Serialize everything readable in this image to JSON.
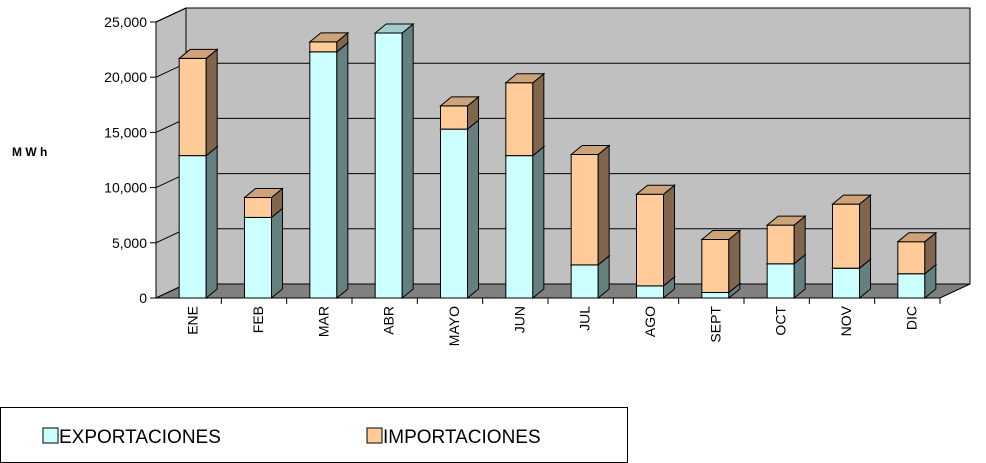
{
  "chart_data": {
    "type": "bar",
    "stacked": true,
    "three_d": true,
    "categories": [
      "ENE",
      "FEB",
      "MAR",
      "ABR",
      "MAYO",
      "JUN",
      "JUL",
      "AGO",
      "SEPT",
      "OCT",
      "NOV",
      "DIC"
    ],
    "series": [
      {
        "name": "EXPORTACIONES",
        "color": "#ccffff",
        "values": [
          12900,
          7300,
          22300,
          24000,
          15300,
          12900,
          3000,
          1100,
          500,
          3100,
          2700,
          2200
        ]
      },
      {
        "name": "IMPORTACIONES",
        "color": "#ffcc99",
        "values": [
          8800,
          1800,
          900,
          0,
          2100,
          6600,
          10000,
          8300,
          4800,
          3500,
          5800,
          2900
        ]
      }
    ],
    "ylabel": "M W h",
    "xlabel": "",
    "title": "",
    "ylim": [
      0,
      25000
    ],
    "yticks": [
      0,
      5000,
      10000,
      15000,
      20000,
      25000
    ],
    "ytick_labels": [
      "0",
      "5,000",
      "10,000",
      "15,000",
      "20,000",
      "25,000"
    ],
    "grid": true,
    "legend_position": "bottom-left",
    "wall_color": "#c0c0c0",
    "floor_color": "#808080"
  }
}
